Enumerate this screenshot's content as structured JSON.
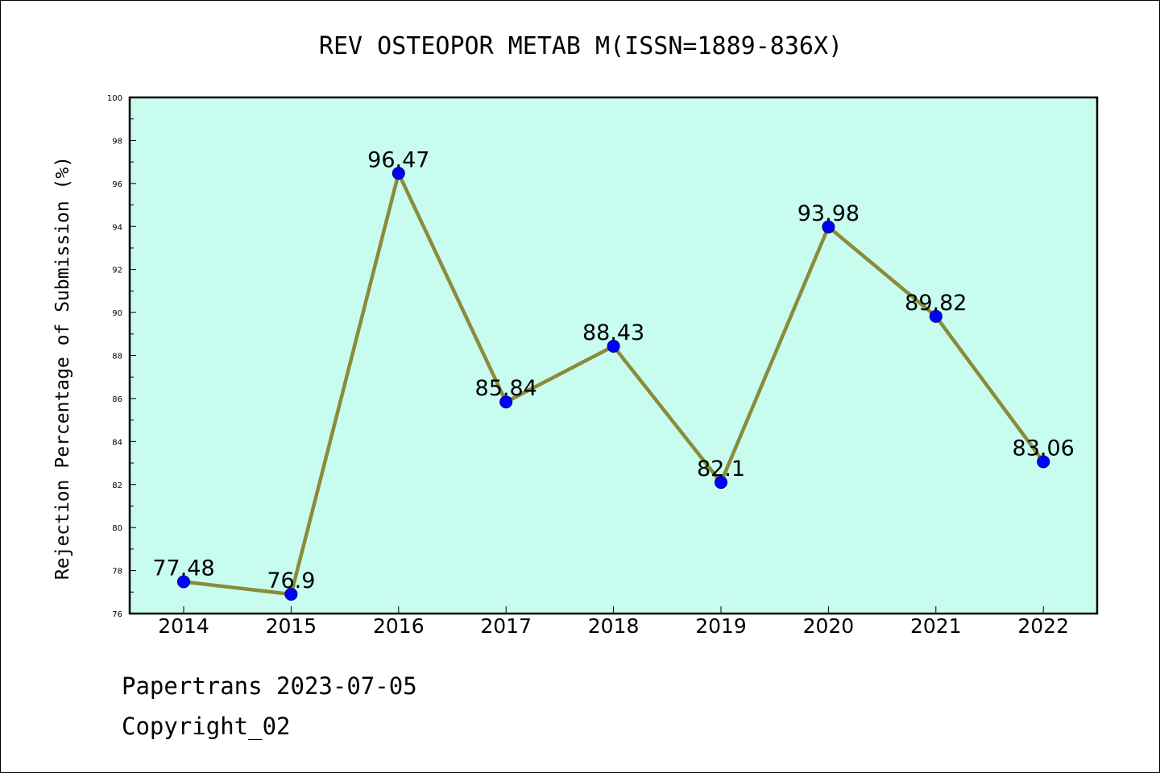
{
  "chart_data": {
    "type": "line",
    "title": "REV OSTEOPOR METAB M(ISSN=1889-836X)",
    "xlabel": "",
    "ylabel": "Rejection Percentage of Submission (%)",
    "categories": [
      "2014",
      "2015",
      "2016",
      "2017",
      "2018",
      "2019",
      "2020",
      "2021",
      "2022"
    ],
    "series": [
      {
        "values": [
          77.48,
          76.9,
          96.47,
          85.84,
          88.43,
          82.1,
          93.98,
          89.82,
          83.06
        ],
        "labels": [
          "77.48",
          "76.9",
          "96.47",
          "85.84",
          "88.43",
          "82.1",
          "93.98",
          "89.82",
          "83.06"
        ]
      }
    ],
    "ylim": [
      76,
      100
    ],
    "yticks": [
      76,
      78,
      80,
      82,
      84,
      86,
      88,
      90,
      92,
      94,
      96,
      98,
      100
    ],
    "ytick_labels": [
      "76",
      "78",
      "80",
      "82",
      "84",
      "86",
      "88",
      "90",
      "92",
      "94",
      "96",
      "98",
      "100"
    ],
    "grid": false,
    "legend": "none",
    "colors": {
      "plot_background": "#c8fcee",
      "line": "#8b8b3a",
      "marker": "#0000ff",
      "axes": "#000000"
    }
  },
  "footer": {
    "line1": "Papertrans 2023-07-05",
    "line2": "Copyright_02"
  }
}
